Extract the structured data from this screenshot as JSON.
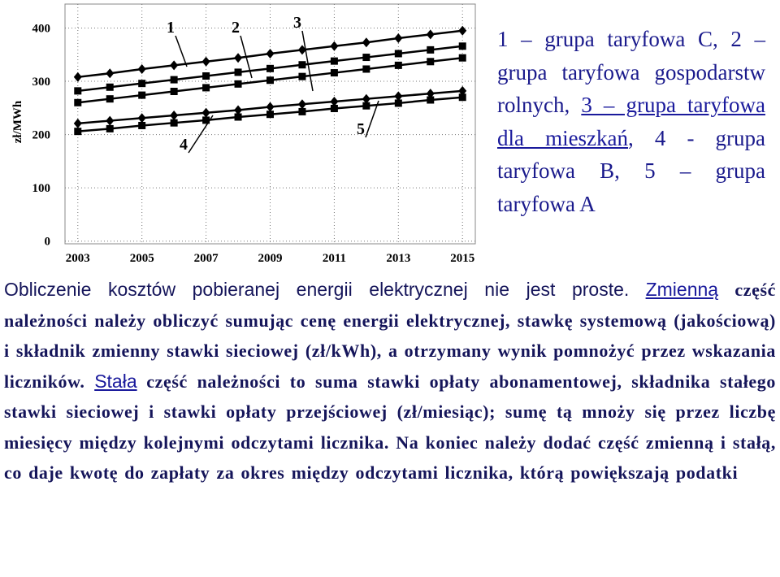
{
  "chart_data": {
    "type": "line",
    "y_label": "zł/MWh",
    "x": [
      2003,
      2004,
      2005,
      2006,
      2007,
      2008,
      2009,
      2010,
      2011,
      2012,
      2013,
      2014,
      2015
    ],
    "xlim": [
      2002.6,
      2015.4
    ],
    "xticks": [
      2003,
      2005,
      2007,
      2009,
      2011,
      2013,
      2015
    ],
    "ylim": [
      -5,
      445
    ],
    "yticks": [
      0,
      100,
      200,
      300,
      400
    ],
    "grid": true,
    "series": [
      {
        "name": "1",
        "color": "#000000",
        "marker": "diamond",
        "values": [
          308,
          315,
          323,
          330,
          337,
          344,
          352,
          359,
          366,
          373,
          381,
          388,
          395
        ]
      },
      {
        "name": "2",
        "color": "#000000",
        "marker": "square",
        "values": [
          282,
          289,
          296,
          303,
          310,
          317,
          324,
          331,
          338,
          345,
          352,
          359,
          366
        ]
      },
      {
        "name": "3",
        "color": "#000000",
        "marker": "square",
        "values": [
          260,
          267,
          274,
          281,
          288,
          295,
          302,
          309,
          316,
          323,
          330,
          337,
          344
        ]
      },
      {
        "name": "4",
        "color": "#000000",
        "marker": "diamond",
        "values": [
          221,
          226,
          231,
          236,
          241,
          246,
          252,
          257,
          262,
          267,
          272,
          277,
          282
        ]
      },
      {
        "name": "5",
        "color": "#000000",
        "marker": "square",
        "values": [
          206,
          211,
          217,
          222,
          227,
          233,
          238,
          243,
          249,
          254,
          259,
          265,
          270
        ]
      }
    ]
  },
  "side_note": [
    "1 – grupa taryfowa C, 2 – grupa taryfowa gospodarstw rolnych, ",
    "3 – grupa taryfowa dla mieszkań",
    ", 4 - grupa taryfowa B, 5 – grupa taryfowa A"
  ],
  "paragraph": [
    "Obliczenie kosztów pobieranej energii elektrycznej nie jest proste.",
    "Zmienną",
    " część należności należy obliczyć sumując cenę energii elektrycznej, stawkę systemową (jakościową) i składnik zmienny stawki sieciowej (zł/kWh), a otrzymany wynik pomnożyć przez wskazania liczników. ",
    "Stała",
    " część należności to suma stawki opłaty abonamentowej, składnika stałego stawki sieciowej i stawki opłaty przejściowej (zł/miesiąc); sumę tą mnoży się przez liczbę miesięcy między kolejnymi odczytami licznika. Na koniec należy dodać część zmienną i stałą, co daje kwotę do zapłaty za okres między odczytami licznika, którą powiększają podatki"
  ]
}
